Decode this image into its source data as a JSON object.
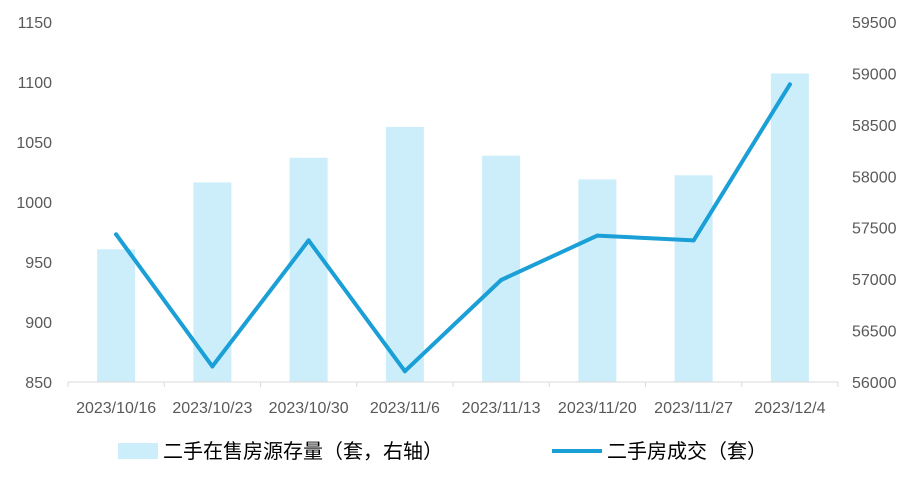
{
  "chart_data": {
    "type": "bar+line",
    "categories": [
      "2023/10/16",
      "2023/10/23",
      "2023/10/30",
      "2023/11/6",
      "2023/11/13",
      "2023/11/20",
      "2023/11/27",
      "2023/12/4"
    ],
    "series": [
      {
        "name": "二手在售房源存量（套，右轴）",
        "type": "bar",
        "axis": "right",
        "color": "#CCEEFB",
        "values": [
          57290,
          57940,
          58180,
          58480,
          58200,
          57970,
          58010,
          59000
        ]
      },
      {
        "name": "二手房成交（套）",
        "type": "line",
        "axis": "left",
        "color": "#1A9FD6",
        "values": [
          973,
          863,
          968,
          859,
          935,
          972,
          968,
          1098
        ]
      }
    ],
    "left_axis": {
      "min": 850,
      "max": 1150,
      "ticks": [
        850,
        900,
        950,
        1000,
        1050,
        1100,
        1150
      ]
    },
    "right_axis": {
      "min": 56000,
      "max": 59500,
      "ticks": [
        56000,
        56500,
        57000,
        57500,
        58000,
        58500,
        59000,
        59500
      ]
    },
    "grid": false,
    "legend_position": "bottom"
  }
}
